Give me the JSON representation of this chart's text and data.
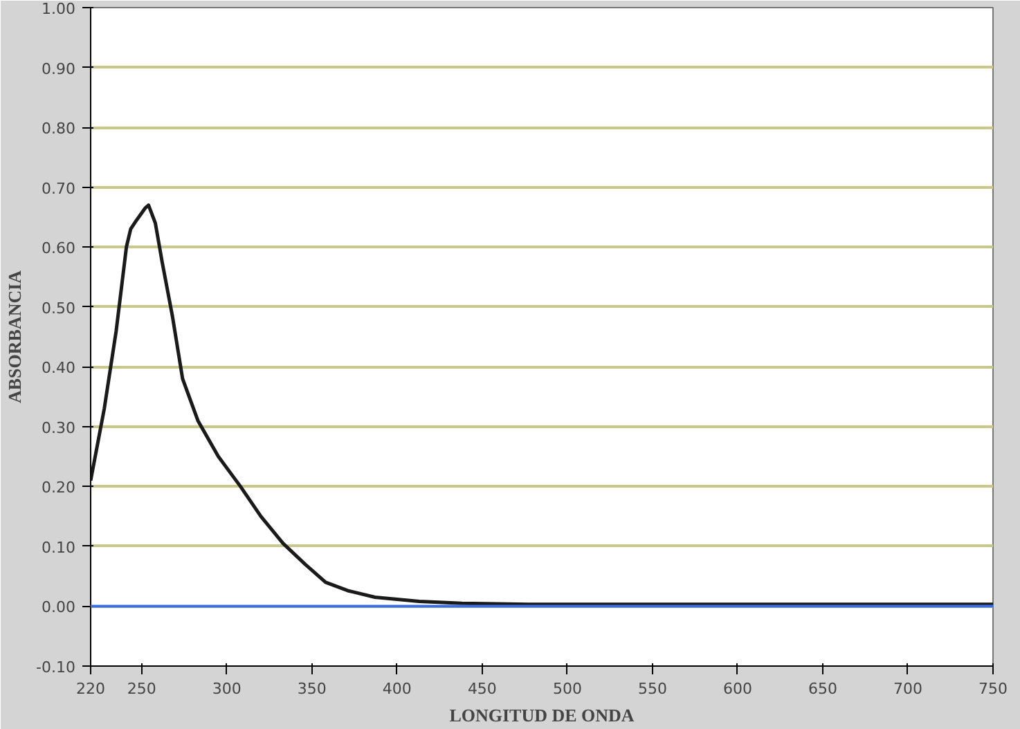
{
  "chart_data": {
    "type": "line",
    "xlabel": "LONGITUD DE ONDA",
    "ylabel": "ABSORBANCIA",
    "x": [
      220,
      228,
      235,
      241,
      243.5,
      247,
      252,
      254,
      258,
      262,
      268,
      274,
      283,
      295,
      308,
      320,
      333,
      346,
      358,
      371,
      387,
      413,
      438,
      480,
      550,
      650,
      750
    ],
    "series": [
      {
        "color": "#1a1a1a",
        "values": [
          0.21,
          0.33,
          0.46,
          0.6,
          0.63,
          0.645,
          0.665,
          0.67,
          0.64,
          0.575,
          0.485,
          0.38,
          0.31,
          0.25,
          0.2,
          0.15,
          0.105,
          0.07,
          0.04,
          0.026,
          0.015,
          0.008,
          0.005,
          0.003,
          0.003,
          0.003,
          0.003
        ]
      }
    ],
    "xlim": [
      220,
      750
    ],
    "ylim": [
      -0.1,
      1.0
    ],
    "xticks": [
      220,
      250,
      300,
      350,
      400,
      450,
      500,
      550,
      600,
      650,
      700,
      750
    ],
    "yticks": [
      {
        "value": -0.1,
        "label": "-0.10"
      },
      {
        "value": 0,
        "label": "0.00"
      },
      {
        "value": 0.1,
        "label": "0.10"
      },
      {
        "value": 0.2,
        "label": "0.20"
      },
      {
        "value": 0.3,
        "label": "0.30"
      },
      {
        "value": 0.4,
        "label": "0.40"
      },
      {
        "value": 0.5,
        "label": "0.50"
      },
      {
        "value": 0.6,
        "label": "0.60"
      },
      {
        "value": 0.7,
        "label": "0.70"
      },
      {
        "value": 0.8,
        "label": "0.80"
      },
      {
        "value": 0.9,
        "label": "0.90"
      },
      {
        "value": 1.0,
        "label": "1.00"
      }
    ],
    "grid": "y",
    "marker": "none",
    "line_style": "solid",
    "ref_lines": [
      {
        "axis": "y",
        "value": 0,
        "color": "#3a6fe0"
      }
    ]
  }
}
